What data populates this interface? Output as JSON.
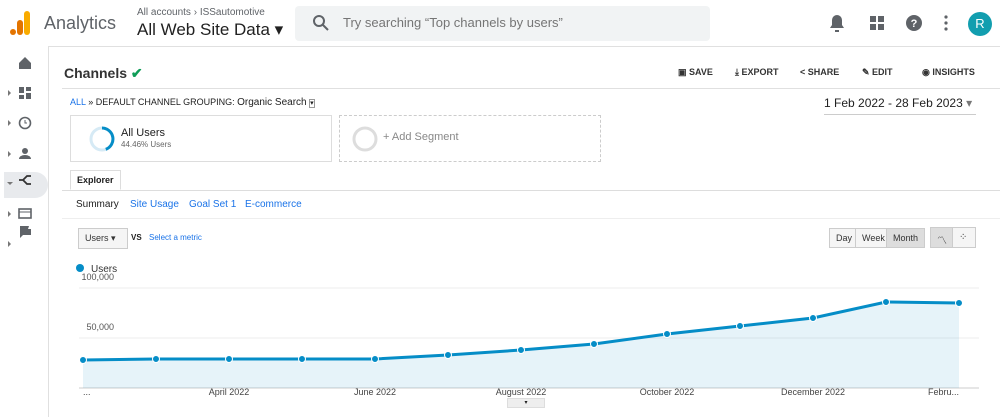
{
  "header": {
    "app": "Analytics",
    "accounts": "All accounts",
    "account": "ISSautomotive",
    "property": "All Web Site Data",
    "search": "Try searching “Top channels by users”",
    "avatar": "R"
  },
  "report": {
    "title": "Channels",
    "actions": [
      "SAVE",
      "EXPORT",
      "SHARE",
      "EDIT",
      "INSIGHTS"
    ],
    "crumb_all": "ALL",
    "crumb_sep": "»",
    "crumb_group": "DEFAULT CHANNEL GROUPING:",
    "crumb_value": "Organic Search",
    "date_range": "1 Feb 2022 - 28 Feb 2023"
  },
  "segments": {
    "name": "All Users",
    "share": "44.46% Users",
    "add": "+ Add Segment"
  },
  "tabs": {
    "main": "Explorer",
    "sub": [
      "Summary",
      "Site Usage",
      "Goal Set 1",
      "E-commerce"
    ]
  },
  "controls": {
    "metric": "Users",
    "vs": "VS",
    "select": "Select a metric",
    "granularity": [
      "Day",
      "Week",
      "Month"
    ]
  },
  "chart_data": {
    "type": "line",
    "categories": [
      "...",
      null,
      "April 2022",
      null,
      "June 2022",
      null,
      "August 2022",
      null,
      "October 2022",
      null,
      "December 2022",
      null,
      "Febru..."
    ],
    "series": [
      {
        "name": "Users",
        "color": "#058dc7",
        "values": [
          28000,
          29000,
          29000,
          29000,
          29000,
          33000,
          38000,
          44000,
          54000,
          62000,
          70000,
          86000,
          85000
        ]
      }
    ],
    "ylim": [
      0,
      110000
    ],
    "yticks": [
      {
        "value": 50000,
        "label": "50,000"
      },
      {
        "value": 100000,
        "label": "100,000"
      }
    ],
    "grid": true
  }
}
